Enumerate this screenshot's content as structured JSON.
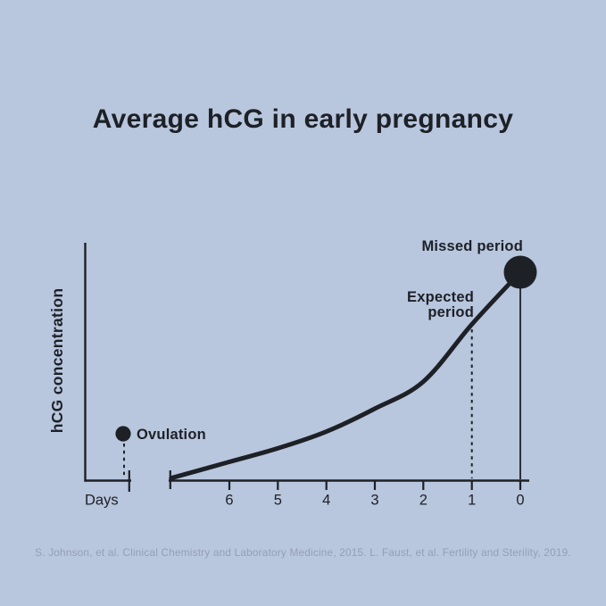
{
  "page": {
    "background_color": "#b8c6de",
    "ink_color": "#1d2126",
    "citation_color": "#959fb4"
  },
  "title": "Average hCG in early pregnancy",
  "citation": "S. Johnson, et al. Clinical Chemistry and Laboratory Medicine, 2015. L. Faust, et al. Fertility and Sterility, 2019.",
  "chart_data": {
    "type": "line",
    "title": "Average hCG in early pregnancy",
    "xlabel": "Days",
    "ylabel": "hCG concentration",
    "x_axis": {
      "label": "Days",
      "tick_labels": [
        "6",
        "5",
        "4",
        "3",
        "2",
        "1",
        "0"
      ],
      "direction": "days counting down to missed period (0)",
      "broken_axis": true
    },
    "y_axis": {
      "label": "hCG concentration",
      "tick_labels": [],
      "scale": "relative (no numeric ticks shown)"
    },
    "series": [
      {
        "name": "Average hCG",
        "x_days": [
          7.2,
          6,
          5,
          4,
          3,
          2,
          1,
          0
        ],
        "relative_level": [
          0.012,
          0.09,
          0.155,
          0.235,
          0.345,
          0.475,
          0.75,
          1.0
        ]
      }
    ],
    "annotations": [
      {
        "id": "ovulation",
        "label": "Ovulation",
        "type": "small dot with dotted drop-line",
        "location": "on detached axis segment left of axis break"
      },
      {
        "id": "expected-period",
        "label": "Expected period",
        "lines": [
          "Expected",
          "period"
        ],
        "type": "dotted vertical line up to curve",
        "x_day": 1
      },
      {
        "id": "missed-period",
        "label": "Missed period",
        "type": "large dot on curve with thin vertical line to axis",
        "x_day": 0,
        "relative_level": 1.0
      }
    ],
    "grid": false,
    "legend": false
  }
}
